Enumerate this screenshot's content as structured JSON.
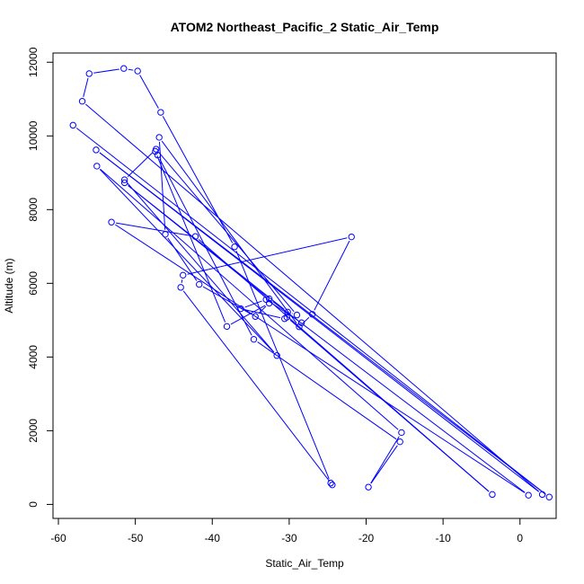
{
  "chart_data": {
    "type": "line",
    "title": "ATOM2 Northeast_Pacific_2 Static_Air_Temp",
    "xlabel": "Static_Air_Temp",
    "ylabel": "Altitude (m)",
    "xlim": [
      -60.7,
      4.7
    ],
    "ylim": [
      -380,
      12250
    ],
    "xticks": [
      -60,
      -50,
      -40,
      -30,
      -20,
      -10,
      0
    ],
    "yticks": [
      0,
      2000,
      4000,
      6000,
      8000,
      10000,
      12000
    ],
    "grid": false,
    "legend": "none",
    "series": [
      {
        "color": "#0000ff",
        "marker": "open-circle",
        "points": [
          [
            -58.1,
            10290
          ],
          [
            3.8,
            200
          ],
          [
            -55.1,
            9620
          ],
          [
            2.9,
            270
          ],
          [
            -56.9,
            10940
          ],
          [
            -56.0,
            11690
          ],
          [
            -51.5,
            11830
          ],
          [
            -49.7,
            11760
          ],
          [
            -46.7,
            10640
          ],
          [
            -37.1,
            6990
          ],
          [
            -24.6,
            580
          ],
          [
            -24.4,
            530
          ],
          [
            -44.1,
            5890
          ],
          [
            -43.8,
            6220
          ],
          [
            -21.9,
            7260
          ],
          [
            -27.0,
            5160
          ],
          [
            -28.7,
            4820
          ],
          [
            -46.9,
            9960
          ],
          [
            -46.1,
            7330
          ],
          [
            -41.7,
            5970
          ],
          [
            -34.4,
            5100
          ],
          [
            -32.6,
            5460
          ],
          [
            -38.1,
            4830
          ],
          [
            -47.4,
            9580
          ],
          [
            -47.1,
            9480
          ],
          [
            -34.6,
            4480
          ],
          [
            -15.6,
            1700
          ],
          [
            -19.7,
            470
          ],
          [
            -15.4,
            1950
          ],
          [
            -55.0,
            9180
          ],
          [
            -31.6,
            4040
          ],
          [
            -51.4,
            8810
          ],
          [
            -47.3,
            9640
          ],
          [
            -29.0,
            5140
          ],
          [
            -30.2,
            5220
          ],
          [
            -51.4,
            8730
          ],
          [
            -32.6,
            5580
          ],
          [
            1.1,
            250
          ],
          [
            -53.1,
            7660
          ],
          [
            -42.2,
            7270
          ],
          [
            -3.6,
            270
          ],
          [
            -30.3,
            5080
          ],
          [
            -30.6,
            5040
          ],
          [
            -36.3,
            5310
          ],
          [
            -33.0,
            5560
          ],
          [
            -28.4,
            4930
          ]
        ]
      }
    ]
  }
}
